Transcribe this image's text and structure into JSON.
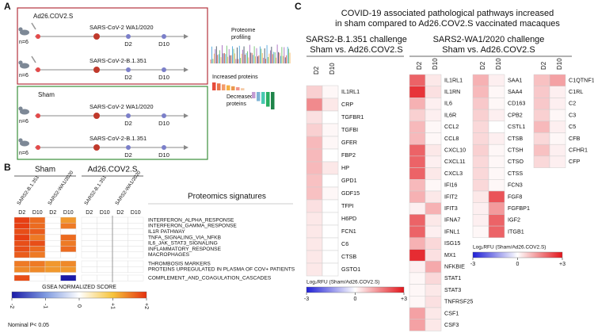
{
  "panel_a": {
    "label": "A",
    "groups": [
      {
        "name": "Ad26.COV2.S",
        "rows": [
          {
            "n": "n=6",
            "challenge": "SARS-CoV-2 WA1/2020",
            "days": [
              "D2",
              "D10"
            ]
          },
          {
            "n": "n=6",
            "challenge": "SARS-CoV-2-B.1.351",
            "days": [
              "D2",
              "D10"
            ]
          }
        ]
      },
      {
        "name": "Sham",
        "rows": [
          {
            "n": "n=6",
            "challenge": "SARS-CoV-2 WA1/2020",
            "days": [
              "D2",
              "D10"
            ]
          },
          {
            "n": "n=6",
            "challenge": "SARS-CoV-2-B.1.351",
            "days": [
              "D2",
              "D10"
            ]
          }
        ]
      }
    ],
    "profiling": [
      "Proteome",
      "profiling"
    ],
    "increased": "Increased proteins",
    "decreased": [
      "Decreased",
      "proteins"
    ]
  },
  "panel_b": {
    "label": "B",
    "groups": [
      {
        "name": "Sham",
        "columns": [
          {
            "virus": "SARS2-B.1.351",
            "days": [
              "D2",
              "D10"
            ]
          },
          {
            "virus": "SARS2-WA1/2020",
            "days": [
              "D2",
              "D10"
            ]
          }
        ]
      },
      {
        "name": "Ad26.COV2.S",
        "columns": [
          {
            "virus": "SARS2-B.1.351",
            "days": [
              "D2",
              "D10"
            ]
          },
          {
            "virus": "SARS2-WA1/2020",
            "days": [
              "D2",
              "D10"
            ]
          }
        ]
      }
    ],
    "signatures_title": "Proteomics signatures",
    "sections": [
      {
        "rows": [
          "INTERFERON_ALPHA_RESPONSE",
          "INTERFERON_GAMMA_RESPONSE",
          "IL1R PATHWAY",
          "TNFA_SIGNALING_VIA_NFKB",
          "IL6_JAK_STAT3_SIGNALING",
          "INFLAMMATORY_RESPONSE",
          "MACROPHAGES"
        ],
        "values": [
          [
            [
              1.9,
              1.6,
              null,
              1.3
            ],
            [
              1.9,
              1.6,
              null,
              1.5
            ],
            [
              1.8,
              1.7,
              null,
              null
            ],
            [
              1.9,
              1.5,
              null,
              1.6
            ],
            [
              1.8,
              1.8,
              null,
              1.5
            ],
            [
              1.8,
              1.6,
              null,
              1.6
            ],
            [
              1.7,
              1.5,
              null,
              null
            ]
          ],
          [
            [
              null,
              null,
              null,
              null
            ],
            [
              null,
              null,
              null,
              null
            ],
            [
              null,
              null,
              null,
              null
            ],
            [
              null,
              null,
              null,
              null
            ],
            [
              null,
              null,
              null,
              null
            ],
            [
              null,
              null,
              null,
              null
            ],
            [
              null,
              null,
              null,
              null
            ]
          ]
        ]
      },
      {
        "rows": [
          "THROMBOSIS MARKERS",
          "PROTEINS UPREGULATED IN PLASMA OF COV+ PATIENTS"
        ],
        "values": [
          [
            [
              1.5,
              1.5,
              1.3,
              1.4
            ],
            [
              1.4,
              1.4,
              1.3,
              1.3
            ]
          ],
          [
            [
              null,
              null,
              null,
              null
            ],
            [
              null,
              null,
              null,
              null
            ]
          ]
        ]
      },
      {
        "rows": [
          "COMPLEMENT_AND_COAGULATION_CASCADES"
        ],
        "values": [
          [
            [
              1.8,
              null,
              null,
              -2
            ]
          ],
          [
            [
              null,
              null,
              null,
              null
            ]
          ]
        ]
      }
    ],
    "colorbar": {
      "label": "GSEA NORMALIZED SCORE",
      "lim": [
        -2,
        2
      ],
      "ticks": [
        -2,
        -1,
        0,
        {
          "value": 1,
          "label": "+1"
        },
        {
          "value": 2,
          "label": "+2"
        }
      ],
      "colors": [
        "#1a1aa8",
        "#7f9ae0",
        "#ffffff",
        "#f6c43a",
        "#e5300f"
      ]
    },
    "note": "Nominal P< 0.05"
  },
  "panel_c": {
    "label": "C",
    "title": [
      "COVID-19 associated pathological pathways increased",
      "in sham compared to Ad26.COV2.S vaccinated macaques"
    ],
    "left": {
      "title": [
        "SARS2-B.1.351 challenge",
        "Sham vs. Ad26.COV2.S"
      ],
      "columns": [
        "D2",
        "D10"
      ],
      "groups": [
        {
          "rows": [
            "IL1RL1",
            "CRP",
            "TGFBR1",
            "TGFBI",
            "GFER",
            "FBP2",
            "HP",
            "GPD1",
            "GDF15",
            "TFPI",
            "H6PD",
            "FCN1",
            "C6",
            "CTSB",
            "GSTO1"
          ],
          "values": [
            [
              0.6,
              0.1
            ],
            [
              1.5,
              0.3
            ],
            [
              0.4,
              0
            ],
            [
              0.6,
              0.1
            ],
            [
              0.9,
              0.1
            ],
            [
              0.9,
              0
            ],
            [
              0.9,
              0.3
            ],
            [
              0.8,
              0
            ],
            [
              0.8,
              0.1
            ],
            [
              0.4,
              0
            ],
            [
              0.3,
              0
            ],
            [
              0.3,
              0
            ],
            [
              0.3,
              0
            ],
            [
              0.3,
              0
            ],
            [
              0.3,
              0
            ]
          ]
        }
      ]
    },
    "right": {
      "title": [
        "SARS2-WA1/2020 challenge",
        "Sham vs. Ad26.COV2.S"
      ],
      "columns": [
        "D2",
        "D10"
      ],
      "groups": [
        {
          "rows": [
            "IL1RL1",
            "IL1RN",
            "IL6",
            "IL6R",
            "CCL2",
            "CCL8",
            "CXCL10",
            "CXCL11",
            "CXCL3",
            "IFI16",
            "IFIT2",
            "IFIT3",
            "IFNA7",
            "IFNL1",
            "ISG15",
            "MX1",
            "NFKBIE",
            "STAT1",
            "STAT3",
            "TNFRSF25",
            "CSF1",
            "CSF3"
          ],
          "values": [
            [
              2,
              0.3
            ],
            [
              2.6,
              0.4
            ],
            [
              1,
              0.2
            ],
            [
              0.6,
              0.2
            ],
            [
              0.9,
              0.1
            ],
            [
              0.9,
              0.1
            ],
            [
              2,
              0.3
            ],
            [
              2,
              0.2
            ],
            [
              2,
              0.3
            ],
            [
              0.9,
              0.1
            ],
            [
              1,
              0.3
            ],
            [
              0.2,
              1
            ],
            [
              2,
              0.3
            ],
            [
              2,
              0.2
            ],
            [
              1,
              0.5
            ],
            [
              2.7,
              0.4
            ],
            [
              0.2,
              1.1
            ],
            [
              0.1,
              0.5
            ],
            [
              0.1,
              0.3
            ],
            [
              0.1,
              0.4
            ],
            [
              1.2,
              0.3
            ],
            [
              1.2,
              0.3
            ]
          ]
        },
        {
          "rows": [
            "SAA1",
            "SAA4",
            "CD163",
            "CPB2",
            "CSTL1",
            "CTSB",
            "CTSH",
            "CTSO",
            "CTSS",
            "FCN3",
            "FGF8",
            "FGFBP1",
            "IGF2",
            "ITGB1"
          ],
          "values": [
            [
              1,
              0.2
            ],
            [
              0.9,
              0.1
            ],
            [
              0.7,
              0.1
            ],
            [
              0.6,
              0.2
            ],
            [
              0.5,
              0
            ],
            [
              0.5,
              0.2
            ],
            [
              0.6,
              0.1
            ],
            [
              0.5,
              0.1
            ],
            [
              0.5,
              0.1
            ],
            [
              0.5,
              0.1
            ],
            [
              0.3,
              2.2
            ],
            [
              0.2,
              1.3
            ],
            [
              0.2,
              2
            ],
            [
              0.1,
              2
            ]
          ]
        },
        {
          "rows": [
            "C1QTNF1",
            "C1RL",
            "C2",
            "C3",
            "C5",
            "CFB",
            "CFHR1",
            "CFP"
          ],
          "values": [
            [
              0.8,
              1.2
            ],
            [
              0.7,
              0.2
            ],
            [
              0.7,
              0.2
            ],
            [
              0.6,
              0.1
            ],
            [
              0.9,
              0.2
            ],
            [
              0.5,
              0.1
            ],
            [
              0.8,
              0.2
            ],
            [
              0.5,
              0.2
            ]
          ]
        }
      ]
    },
    "colorbar": {
      "label": "Log₂RFU (Sham/Ad26.COV2.S)",
      "lim": [
        -3,
        3
      ],
      "ticks": [
        -3,
        0,
        {
          "value": 3,
          "label": "+3"
        }
      ],
      "colors": [
        "#1f1fd6",
        "#ffffff",
        "#e3151b"
      ]
    }
  }
}
